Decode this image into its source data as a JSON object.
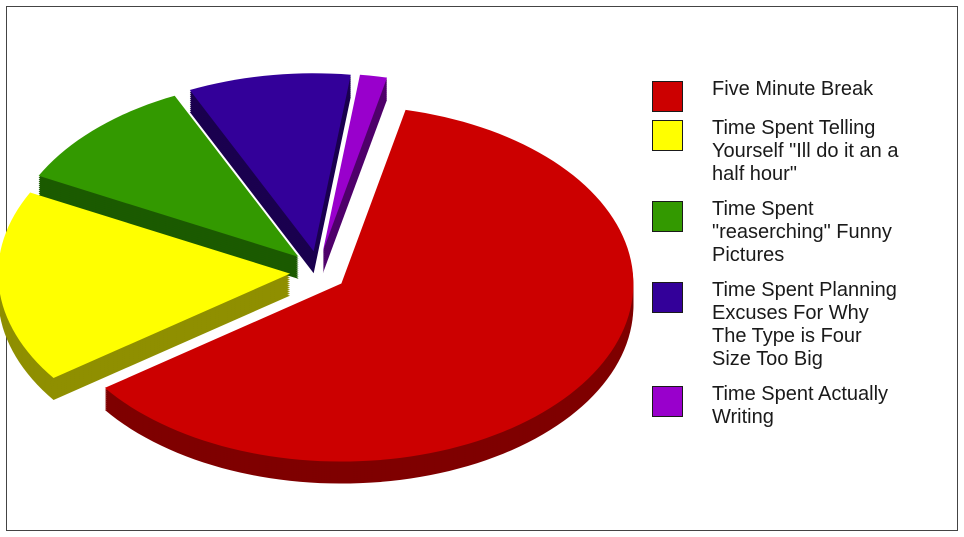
{
  "chart_data": {
    "type": "pie",
    "style": "3d-exploded",
    "title": "",
    "legend_position": "right",
    "slices": [
      {
        "label": "Five Minute Break",
        "value": 61.5,
        "color": "#cc0000",
        "side": "#7f0000"
      },
      {
        "label": "Time Spent Telling\nYourself \"Ill do it an a\nhalf hour\"",
        "value": 17.5,
        "color": "#ffff00",
        "side": "#8f8f00"
      },
      {
        "label": "Time Spent\n\"reaserching\" Funny\nPictures",
        "value": 10.5,
        "color": "#339900",
        "side": "#1b5a00"
      },
      {
        "label": "Time Spent Planning\nExcuses For Why\nThe Type is Four\nSize Too Big",
        "value": 9,
        "color": "#330099",
        "side": "#1a004f"
      },
      {
        "label": "Time Spent Actually\nWriting",
        "value": 1.5,
        "color": "#9900cc",
        "side": "#4f006a"
      }
    ]
  }
}
